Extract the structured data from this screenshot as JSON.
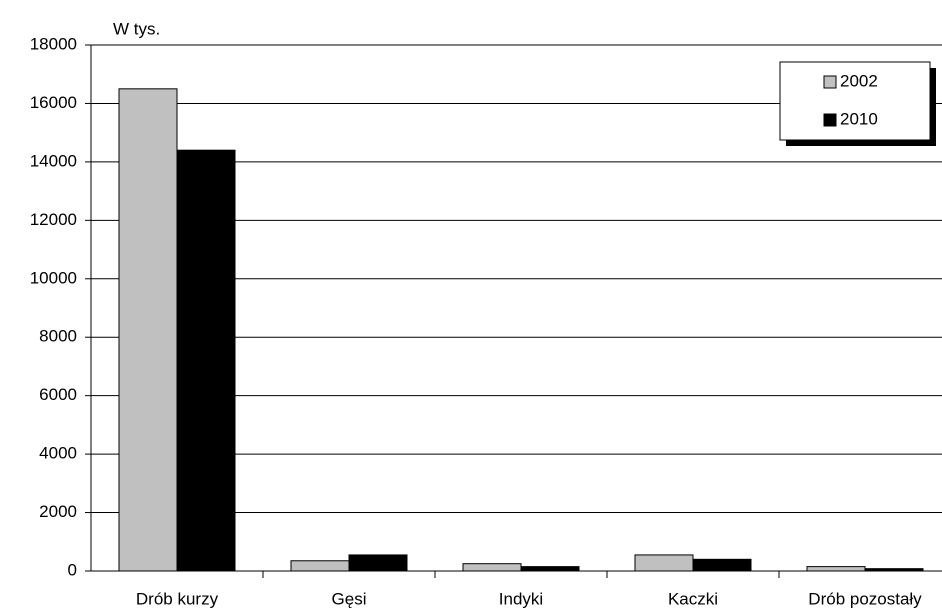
{
  "chart_data": {
    "type": "bar",
    "y_label": "W tys.",
    "categories": [
      "Drób kurzy",
      "Gęsi",
      "Indyki",
      "Kaczki",
      "Drób pozostały"
    ],
    "series": [
      {
        "name": "2002",
        "color": "#c0c0c0",
        "values": [
          16500,
          350,
          250,
          550,
          150
        ]
      },
      {
        "name": "2010",
        "color": "#000000",
        "values": [
          14400,
          550,
          150,
          400,
          80
        ]
      }
    ],
    "ylim": [
      0,
      18000
    ],
    "yticks": [
      0,
      2000,
      4000,
      6000,
      8000,
      10000,
      12000,
      14000,
      16000,
      18000
    ],
    "grid": true,
    "legend": "upper right"
  }
}
